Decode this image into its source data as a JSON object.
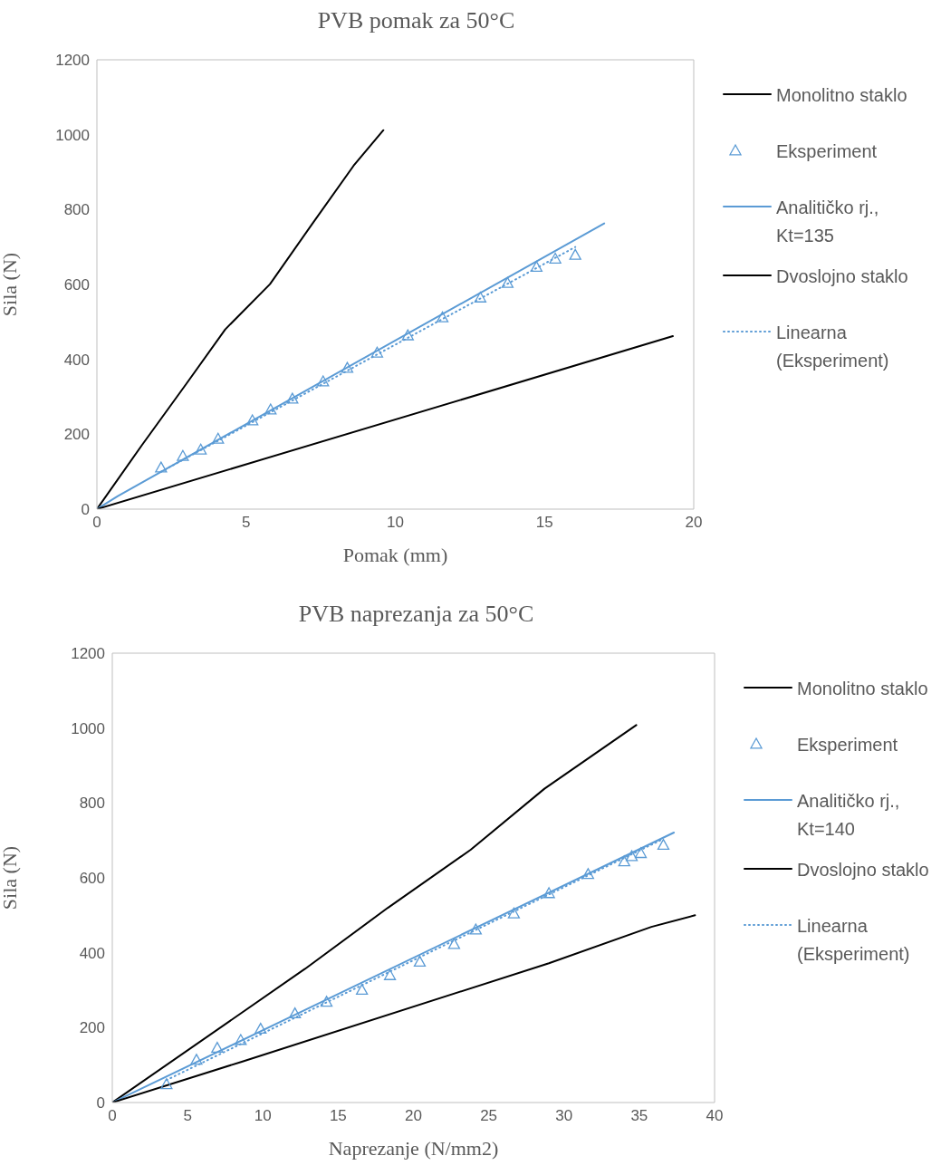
{
  "chart_data": [
    {
      "type": "line",
      "title": "PVB pomak za 50°C",
      "xlabel": "Pomak (mm)",
      "ylabel": "Sila (N)",
      "xlim": [
        0,
        20
      ],
      "xticks": [
        0,
        5,
        10,
        15,
        20
      ],
      "ylim": [
        0,
        1200
      ],
      "yticks": [
        0,
        200,
        400,
        600,
        800,
        1000,
        1200
      ],
      "legend": "right",
      "series": [
        {
          "name": "Monolitno staklo",
          "type": "line",
          "color": "#000000",
          "line_style": "solid",
          "marker": "none",
          "x": [
            0,
            1.5,
            3,
            4.3,
            5.8,
            7.2,
            8.6,
            9.6
          ],
          "values": [
            0,
            170,
            335,
            480,
            601,
            760,
            917,
            1012
          ]
        },
        {
          "name": "Eksperiment",
          "type": "scatter",
          "color": "#5b9bd5",
          "marker": "triangle",
          "x": [
            2.15,
            2.88,
            3.48,
            4.06,
            5.21,
            5.82,
            6.55,
            7.58,
            8.39,
            9.39,
            10.42,
            11.58,
            12.85,
            13.76,
            14.73,
            15.36,
            16.03
          ],
          "values": [
            111,
            142,
            159,
            188,
            237,
            266,
            295,
            341,
            377,
            418,
            464,
            512,
            565,
            604,
            647,
            669,
            679
          ]
        },
        {
          "name": "Analitičko rj., Kt=135",
          "type": "line",
          "color": "#5b9bd5",
          "line_style": "solid",
          "marker": "none",
          "x": [
            0,
            0.7,
            17.0
          ],
          "values": [
            0,
            35,
            763
          ]
        },
        {
          "name": "Dvoslojno staklo",
          "type": "line",
          "color": "#000000",
          "line_style": "solid",
          "marker": "none",
          "x": [
            0,
            19.3
          ],
          "values": [
            0,
            462
          ]
        },
        {
          "name": "Linearna (Eksperiment)",
          "type": "line",
          "color": "#5b9bd5",
          "line_style": "dotted",
          "marker": "none",
          "x": [
            2.15,
            16.03
          ],
          "values": [
            100,
            700
          ]
        }
      ]
    },
    {
      "type": "line",
      "title": "PVB naprezanja za 50°C",
      "xlabel": "Naprezanje (N/mm2)",
      "ylabel": "Sila (N)",
      "xlim": [
        0,
        40
      ],
      "xticks": [
        0,
        5,
        10,
        15,
        20,
        25,
        30,
        35,
        40
      ],
      "ylim": [
        0,
        1200
      ],
      "yticks": [
        0,
        200,
        400,
        600,
        800,
        1000,
        1200
      ],
      "legend": "right",
      "series": [
        {
          "name": "Monolitno staklo",
          "type": "line",
          "color": "#000000",
          "line_style": "solid",
          "marker": "none",
          "x": [
            0,
            12.8,
            18.3,
            23.8,
            28.7,
            34.8
          ],
          "values": [
            0,
            357,
            520,
            675,
            838,
            1008
          ]
        },
        {
          "name": "Eksperiment",
          "type": "scatter",
          "color": "#5b9bd5",
          "marker": "triangle",
          "x": [
            3.6,
            5.59,
            6.97,
            8.53,
            9.85,
            12.13,
            14.23,
            16.58,
            18.44,
            20.42,
            22.7,
            24.14,
            26.67,
            29.0,
            31.6,
            34.0,
            34.5,
            35.1,
            36.6
          ],
          "values": [
            49,
            114,
            146,
            167,
            197,
            238,
            269,
            301,
            340,
            376,
            423,
            462,
            505,
            559,
            610,
            644,
            658,
            666,
            688
          ]
        },
        {
          "name": "Analitičko rj., Kt=140",
          "type": "line",
          "color": "#5b9bd5",
          "line_style": "solid",
          "marker": "none",
          "x": [
            0,
            37.3
          ],
          "values": [
            0,
            721
          ]
        },
        {
          "name": "Dvoslojno staklo",
          "type": "line",
          "color": "#000000",
          "line_style": "solid",
          "marker": "none",
          "x": [
            0,
            8.6,
            29.0,
            35.8,
            38.7
          ],
          "values": [
            0,
            109,
            372,
            469,
            500
          ]
        },
        {
          "name": "Linearna (Eksperiment)",
          "type": "line",
          "color": "#5b9bd5",
          "line_style": "dotted",
          "marker": "none",
          "x": [
            3.6,
            36.6
          ],
          "values": [
            60,
            704
          ]
        }
      ]
    }
  ]
}
